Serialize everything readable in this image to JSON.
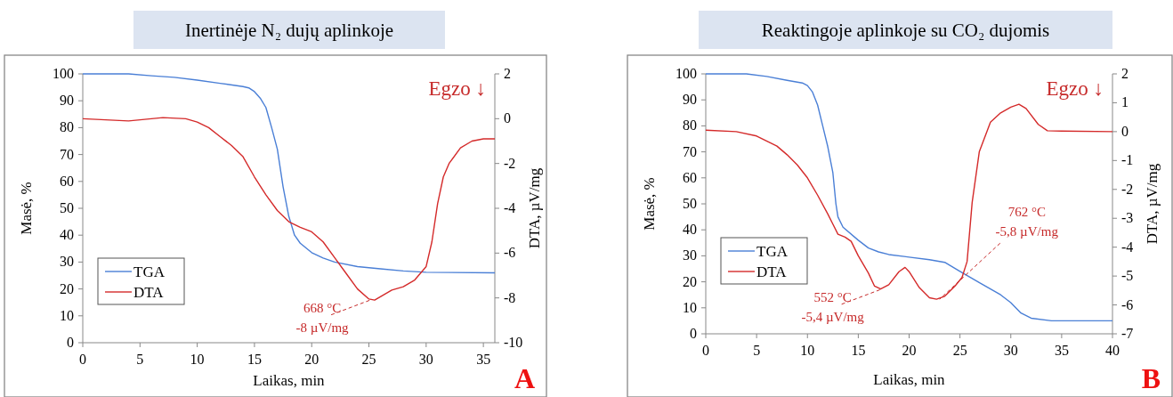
{
  "chart_data": [
    {
      "type": "line",
      "title": "Inertinėje N₂ dujų aplinkoje",
      "xlabel": "Laikas, min",
      "ylabel": "Masė, %",
      "y2label": "DTA, µV/mg",
      "xlim": [
        0,
        36
      ],
      "xticks": [
        0,
        5,
        10,
        15,
        20,
        25,
        30,
        35
      ],
      "ylim": [
        0,
        100
      ],
      "yticks": [
        0,
        10,
        20,
        30,
        40,
        50,
        60,
        70,
        80,
        90,
        100
      ],
      "y2lim": [
        -10,
        2
      ],
      "y2ticks": [
        -10,
        -8,
        -6,
        -4,
        -2,
        0,
        2
      ],
      "legend": "bottom left",
      "grid": false,
      "series": [
        {
          "name": "TGA",
          "color": "#4a7fd6",
          "x": [
            0,
            4,
            6,
            8,
            10,
            12,
            14,
            14.5,
            15,
            15.5,
            16,
            16.5,
            17,
            17.5,
            18,
            18.5,
            19,
            20,
            21,
            22,
            24,
            26,
            28,
            30,
            36
          ],
          "values": [
            100,
            100,
            99.3,
            98.7,
            97.7,
            96.5,
            95.3,
            94.8,
            93.4,
            91,
            87.5,
            80,
            72,
            58,
            47,
            40,
            37,
            33.5,
            31.5,
            30,
            28.3,
            27.5,
            26.7,
            26.2,
            26
          ]
        },
        {
          "name": "DTA",
          "color": "#d42a2a",
          "axis": "y2",
          "x": [
            0,
            4,
            7,
            9,
            10,
            11,
            12,
            13,
            14,
            15,
            16,
            17,
            18,
            19,
            20,
            21,
            22,
            23,
            24,
            25,
            25.5,
            26,
            27,
            28,
            29,
            30,
            30.5,
            31,
            31.5,
            32,
            33,
            34,
            35,
            36
          ],
          "values": [
            0,
            -0.1,
            0.05,
            0,
            -0.15,
            -0.4,
            -0.8,
            -1.2,
            -1.7,
            -2.6,
            -3.4,
            -4.1,
            -4.6,
            -4.85,
            -5.05,
            -5.5,
            -6.2,
            -6.9,
            -7.6,
            -8.05,
            -8.1,
            -7.95,
            -7.65,
            -7.5,
            -7.2,
            -6.6,
            -5.5,
            -3.8,
            -2.6,
            -2,
            -1.3,
            -1,
            -0.9,
            -0.9
          ]
        }
      ],
      "annotations": [
        "Egzo ↓",
        {
          "text": "668 °C\n-8 µV/mg",
          "x": 25.2,
          "y": 16
        },
        "A"
      ]
    },
    {
      "type": "line",
      "title": "Reaktingoje aplinkoje su CO₂ dujomis",
      "xlabel": "Laikas, min",
      "ylabel": "Masė, %",
      "y2label": "DTA, µV/mg",
      "xlim": [
        0,
        40
      ],
      "xticks": [
        0,
        5,
        10,
        15,
        20,
        25,
        30,
        35,
        40
      ],
      "ylim": [
        0,
        100
      ],
      "yticks": [
        0,
        10,
        20,
        30,
        40,
        50,
        60,
        70,
        80,
        90,
        100
      ],
      "y2lim": [
        -7,
        2
      ],
      "y2ticks": [
        -7,
        -6,
        -5,
        -4,
        -3,
        -2,
        -1,
        0,
        1,
        2
      ],
      "legend": "bottom left",
      "grid": false,
      "series": [
        {
          "name": "TGA",
          "color": "#4a7fd6",
          "x": [
            0,
            4,
            6,
            8,
            9.5,
            10,
            10.5,
            11,
            11.5,
            12,
            12.5,
            12.8,
            13,
            13.5,
            15,
            16,
            17,
            18,
            20,
            22,
            23.5,
            25,
            27,
            29,
            30,
            31,
            32,
            34,
            40
          ],
          "values": [
            100,
            100,
            99,
            97.5,
            96.5,
            95.5,
            93,
            88,
            80,
            72,
            62,
            50,
            45,
            41,
            36,
            33,
            31.5,
            30.5,
            29.5,
            28.5,
            27.5,
            24,
            19.5,
            15,
            12,
            8,
            6,
            5,
            5
          ]
        },
        {
          "name": "DTA",
          "color": "#d42a2a",
          "axis": "y2",
          "x": [
            0,
            3,
            5,
            7,
            8,
            9,
            10,
            11,
            12,
            12.5,
            13,
            13.7,
            14.3,
            15,
            16,
            16.6,
            17.2,
            18,
            19,
            19.6,
            20,
            21,
            22,
            22.7,
            23.5,
            24.5,
            25.2,
            25.7,
            26.2,
            26.9,
            28,
            29,
            30,
            30.8,
            31.5,
            32.7,
            33.6,
            35,
            40
          ],
          "values": [
            0.05,
            0,
            -0.15,
            -0.5,
            -0.8,
            -1.15,
            -1.6,
            -2.2,
            -2.85,
            -3.2,
            -3.55,
            -3.65,
            -3.8,
            -4.3,
            -4.9,
            -5.35,
            -5.45,
            -5.3,
            -4.85,
            -4.7,
            -4.85,
            -5.4,
            -5.75,
            -5.8,
            -5.7,
            -5.35,
            -5.05,
            -4.5,
            -2.45,
            -0.7,
            0.33,
            0.65,
            0.85,
            0.95,
            0.8,
            0.25,
            0.03,
            0.02,
            0
          ]
        }
      ],
      "annotations": [
        "Egzo ↓",
        {
          "text": "552 °C\n-5,4 µV/mg",
          "x": 17.3,
          "y": 17.2
        },
        {
          "text": "762 °C\n-5,8 µV/mg",
          "x": 23,
          "y": 13.3
        },
        "B"
      ]
    }
  ]
}
